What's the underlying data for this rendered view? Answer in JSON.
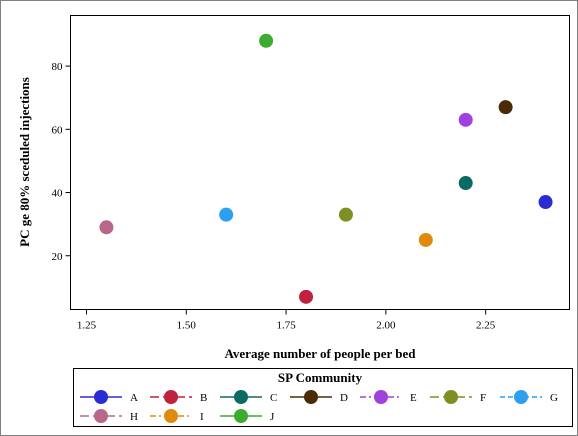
{
  "chart_data": {
    "type": "scatter",
    "xlabel": "Average number of people per bed",
    "ylabel": "PC ge 80% sceduled injections",
    "xlim": [
      1.21,
      2.46
    ],
    "ylim": [
      3,
      96
    ],
    "x_ticks": [
      1.25,
      1.5,
      1.75,
      2.0,
      2.25
    ],
    "x_tick_labels": [
      "1.25",
      "1.50",
      "1.75",
      "2.00",
      "2.25"
    ],
    "y_ticks": [
      20,
      40,
      60,
      80
    ],
    "y_tick_labels": [
      "20",
      "40",
      "60",
      "80"
    ],
    "grid": false,
    "legend": {
      "title": "SP Community",
      "placement": "bottom"
    },
    "series": [
      {
        "name": "A",
        "color": "#2b2bd6",
        "line_style": "solid",
        "x": [
          2.4
        ],
        "y": [
          37
        ]
      },
      {
        "name": "B",
        "color": "#c0213c",
        "line_style": "longdash",
        "x": [
          1.8
        ],
        "y": [
          7
        ]
      },
      {
        "name": "C",
        "color": "#0b6b62",
        "line_style": "solid",
        "x": [
          2.2
        ],
        "y": [
          43
        ]
      },
      {
        "name": "D",
        "color": "#4a2b07",
        "line_style": "solid",
        "x": [
          2.3
        ],
        "y": [
          67
        ]
      },
      {
        "name": "E",
        "color": "#a040e0",
        "line_style": "dashdot",
        "x": [
          2.2
        ],
        "y": [
          63
        ]
      },
      {
        "name": "F",
        "color": "#7f8f24",
        "line_style": "longdash",
        "x": [
          1.9
        ],
        "y": [
          33
        ]
      },
      {
        "name": "G",
        "color": "#2e9ff0",
        "line_style": "dash",
        "x": [
          1.6
        ],
        "y": [
          33
        ]
      },
      {
        "name": "H",
        "color": "#b8678a",
        "line_style": "longdash",
        "x": [
          1.3
        ],
        "y": [
          29
        ]
      },
      {
        "name": "I",
        "color": "#e08a0b",
        "line_style": "dashdot",
        "x": [
          2.1
        ],
        "y": [
          25
        ]
      },
      {
        "name": "J",
        "color": "#3daa30",
        "line_style": "solid",
        "x": [
          1.7
        ],
        "y": [
          88
        ]
      }
    ]
  }
}
